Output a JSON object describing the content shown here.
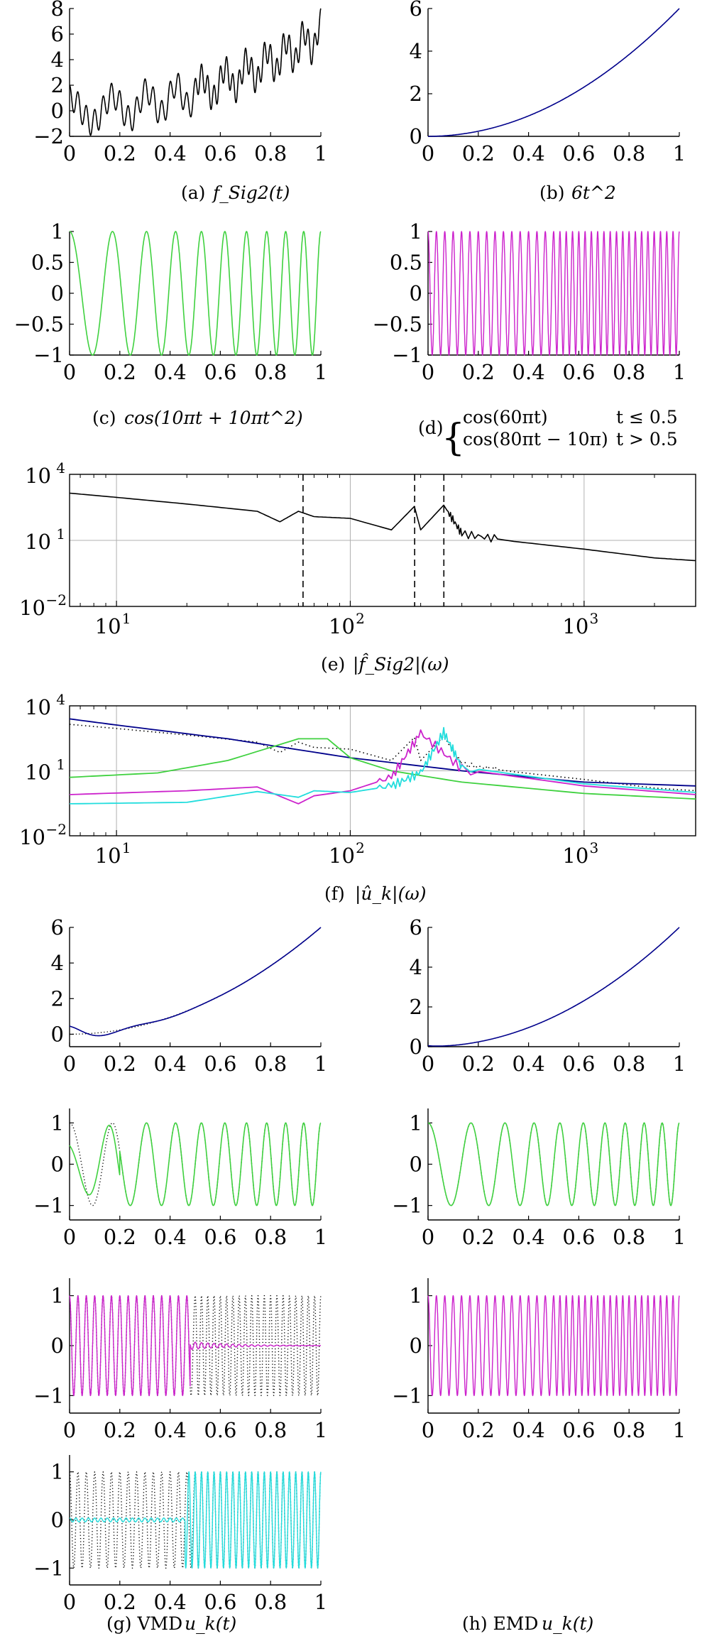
{
  "figure": {
    "captions": {
      "a": {
        "label": "(a)",
        "math": "f_Sig2(t)"
      },
      "b": {
        "label": "(b)",
        "math": "6t^2"
      },
      "c": {
        "label": "(c)",
        "math": "cos(10πt + 10πt^2)"
      },
      "d": {
        "label": "(d)",
        "case1_expr": "cos(60πt)",
        "case1_cond": "t ≤ 0.5",
        "case2_expr": "cos(80πt − 10π)",
        "case2_cond": "t > 0.5"
      },
      "e": {
        "label": "(e)",
        "math": "|f̂_Sig2|(ω)"
      },
      "f": {
        "label": "(f)",
        "math": "|û_k|(ω)"
      },
      "g": {
        "label": "(g) VMD",
        "math": "u_k(t)"
      },
      "h": {
        "label": "(h) EMD",
        "math": "u_k(t)"
      }
    },
    "colors": {
      "black": "#000000",
      "blue": "#00008b",
      "green": "#3fd13f",
      "magenta": "#cc22cc",
      "cyan": "#22dddd",
      "grid": "#b0b0b0"
    }
  },
  "chart_data": [
    {
      "id": "a",
      "type": "line",
      "x_ticks": [
        "0",
        "0.2",
        "0.4",
        "0.6",
        "0.8",
        "1"
      ],
      "y_ticks": [
        "−2",
        "0",
        "2",
        "4",
        "6",
        "8"
      ],
      "xlim": [
        0,
        1
      ],
      "ylim": [
        -2,
        8
      ],
      "series": [
        {
          "color": "#000000",
          "formula": "6t^2 + cos(10πt+10πt^2) + cos(60πt | 80πt−10π)",
          "x": [
            0,
            0.1,
            0.2,
            0.3,
            0.4,
            0.5,
            0.6,
            0.7,
            0.8,
            0.9,
            1.0
          ],
          "y": [
            2.0,
            -1.2,
            0.1,
            1.5,
            0.3,
            2.4,
            3.0,
            2.5,
            4.9,
            4.2,
            8.0
          ]
        }
      ]
    },
    {
      "id": "b",
      "type": "line",
      "x_ticks": [
        "0",
        "0.2",
        "0.4",
        "0.6",
        "0.8",
        "1"
      ],
      "y_ticks": [
        "0",
        "2",
        "4",
        "6"
      ],
      "xlim": [
        0,
        1
      ],
      "ylim": [
        0,
        6
      ],
      "series": [
        {
          "color": "#00008b",
          "formula": "6t^2",
          "x": [
            0,
            0.2,
            0.4,
            0.6,
            0.8,
            1.0
          ],
          "y": [
            0,
            0.24,
            0.96,
            2.16,
            3.84,
            6.0
          ]
        }
      ]
    },
    {
      "id": "c",
      "type": "line",
      "x_ticks": [
        "0",
        "0.2",
        "0.4",
        "0.6",
        "0.8",
        "1"
      ],
      "y_ticks": [
        "−1",
        "−0.5",
        "0",
        "0.5",
        "1"
      ],
      "xlim": [
        0,
        1
      ],
      "ylim": [
        -1,
        1
      ],
      "series": [
        {
          "color": "#3fd13f",
          "formula": "cos(10πt+10πt^2)",
          "x": [
            0,
            0.25,
            0.5,
            0.75,
            1.0
          ],
          "y": [
            1.0,
            -0.38,
            -0.71,
            0.92,
            1.0
          ]
        }
      ]
    },
    {
      "id": "d",
      "type": "line",
      "x_ticks": [
        "0",
        "0.2",
        "0.4",
        "0.6",
        "0.8",
        "1"
      ],
      "y_ticks": [
        "−1",
        "−0.5",
        "0",
        "0.5",
        "1"
      ],
      "xlim": [
        0,
        1
      ],
      "ylim": [
        -1,
        1
      ],
      "series": [
        {
          "color": "#cc22cc",
          "formula": "cos(60πt) for t≤0.5; cos(80πt−10π) for t>0.5",
          "x": [
            0,
            0.5,
            1.0
          ],
          "y": [
            1.0,
            1.0,
            1.0
          ]
        }
      ]
    },
    {
      "id": "e",
      "type": "line",
      "scale": "loglog",
      "x_ticks": [
        "10^1",
        "10^2",
        "10^3"
      ],
      "y_ticks": [
        "10^-2",
        "10^1",
        "10^4"
      ],
      "xlim": [
        6.3,
        3000
      ],
      "ylim": [
        0.01,
        10000
      ],
      "vlines": [
        62.8,
        188.5,
        251.3
      ],
      "series": [
        {
          "color": "#000000",
          "x": [
            6.3,
            10,
            20,
            40,
            50,
            60,
            70,
            100,
            150,
            188,
            200,
            251,
            300,
            500,
            1000,
            2000,
            3000
          ],
          "y": [
            1400,
            900,
            450,
            210,
            70,
            210,
            120,
            100,
            30,
            350,
            30,
            400,
            20,
            9,
            4,
            1.6,
            1.2
          ]
        }
      ]
    },
    {
      "id": "f",
      "type": "line",
      "scale": "loglog",
      "x_ticks": [
        "10^1",
        "10^2",
        "10^3"
      ],
      "y_ticks": [
        "10^-2",
        "10^1",
        "10^4"
      ],
      "xlim": [
        6.3,
        3000
      ],
      "ylim": [
        0.01,
        10000
      ],
      "series": [
        {
          "color": "#00008b",
          "x": [
            6.3,
            10,
            30,
            100,
            300,
            1000,
            3000
          ],
          "y": [
            2500,
            1300,
            300,
            40,
            10,
            3,
            2
          ]
        },
        {
          "color": "#3fd13f",
          "x": [
            6.3,
            15,
            30,
            60,
            80,
            100,
            150,
            300,
            1000,
            3000
          ],
          "y": [
            5,
            8,
            30,
            300,
            300,
            40,
            10,
            3,
            0.9,
            0.5
          ]
        },
        {
          "color": "#cc22cc",
          "x": [
            6.3,
            20,
            40,
            60,
            70,
            100,
            150,
            200,
            300,
            1000,
            3000
          ],
          "y": [
            0.8,
            1.2,
            1.8,
            0.3,
            0.7,
            1.2,
            5,
            550,
            12,
            2,
            0.8
          ]
        },
        {
          "color": "#22dddd",
          "x": [
            6.3,
            20,
            40,
            60,
            70,
            100,
            150,
            200,
            251,
            300,
            1000,
            3000
          ],
          "y": [
            0.3,
            0.35,
            1.1,
            0.6,
            1.2,
            1.0,
            2,
            8,
            600,
            15,
            2.5,
            1.0
          ]
        }
      ]
    },
    {
      "id": "g1",
      "type": "line",
      "x_ticks": [
        "0",
        "0.2",
        "0.4",
        "0.6",
        "0.8",
        "1"
      ],
      "y_ticks": [
        "0",
        "2",
        "4",
        "6"
      ],
      "xlim": [
        0,
        1
      ],
      "ylim": [
        -0.7,
        6
      ],
      "series": [
        {
          "color": "#00008b",
          "x": [
            0,
            0.1,
            0.2,
            0.4,
            0.6,
            0.8,
            1.0
          ],
          "y": [
            0.4,
            -0.4,
            0.2,
            1.0,
            2.2,
            3.8,
            6.0
          ]
        },
        {
          "color": "#000000",
          "style": "dotted",
          "x": [
            0,
            0.2,
            0.4,
            0.6,
            0.8,
            1.0
          ],
          "y": [
            0,
            0.24,
            0.96,
            2.16,
            3.84,
            6.0
          ]
        }
      ]
    },
    {
      "id": "h1",
      "type": "line",
      "x_ticks": [
        "0",
        "0.2",
        "0.4",
        "0.6",
        "0.8",
        "1"
      ],
      "y_ticks": [
        "0",
        "2",
        "4",
        "6"
      ],
      "xlim": [
        0,
        1
      ],
      "ylim": [
        0,
        6
      ],
      "series": [
        {
          "color": "#00008b",
          "x": [
            0,
            0.2,
            0.4,
            0.6,
            0.8,
            1.0
          ],
          "y": [
            0.05,
            0.24,
            0.96,
            2.16,
            3.84,
            6.0
          ]
        }
      ]
    },
    {
      "id": "g2",
      "type": "line",
      "x_ticks": [
        "0",
        "0.2",
        "0.4",
        "0.6",
        "0.8",
        "1"
      ],
      "y_ticks": [
        "−1",
        "0",
        "1"
      ],
      "xlim": [
        0,
        1
      ],
      "ylim": [
        -1.35,
        1.35
      ],
      "series": [
        {
          "color": "#3fd13f",
          "x": [
            0,
            0.1,
            0.25,
            0.5,
            0.75,
            1.0
          ],
          "y": [
            0.7,
            -0.6,
            -0.4,
            -0.71,
            0.92,
            1.0
          ]
        },
        {
          "color": "#000000",
          "style": "dotted",
          "x": [
            0,
            0.25,
            0.5,
            0.75,
            1.0
          ],
          "y": [
            1.0,
            -0.38,
            -0.71,
            0.92,
            1.0
          ]
        }
      ]
    },
    {
      "id": "h2",
      "type": "line",
      "x_ticks": [
        "0",
        "0.2",
        "0.4",
        "0.6",
        "0.8",
        "1"
      ],
      "y_ticks": [
        "−1",
        "0",
        "1"
      ],
      "xlim": [
        0,
        1
      ],
      "ylim": [
        -1.35,
        1.35
      ],
      "series": [
        {
          "color": "#3fd13f",
          "x": [
            0,
            0.25,
            0.5,
            0.75,
            1.0
          ],
          "y": [
            1.0,
            -0.38,
            -0.71,
            0.92,
            1.0
          ]
        }
      ]
    },
    {
      "id": "g3",
      "type": "line",
      "x_ticks": [
        "0",
        "0.2",
        "0.4",
        "0.6",
        "0.8",
        "1"
      ],
      "y_ticks": [
        "−1",
        "0",
        "1"
      ],
      "xlim": [
        0,
        1
      ],
      "ylim": [
        -1.35,
        1.35
      ],
      "series": [
        {
          "color": "#cc22cc",
          "x": [
            0,
            0.45,
            0.5,
            0.6,
            1.0
          ],
          "y": [
            1.0,
            1.0,
            0.1,
            0.05,
            0.05
          ]
        },
        {
          "color": "#000000",
          "style": "dotted",
          "x": [
            0,
            0.5,
            1.0
          ],
          "y": [
            1.0,
            1.0,
            1.0
          ]
        }
      ]
    },
    {
      "id": "h3",
      "type": "line",
      "x_ticks": [
        "0",
        "0.2",
        "0.4",
        "0.6",
        "0.8",
        "1"
      ],
      "y_ticks": [
        "−1",
        "0",
        "1"
      ],
      "xlim": [
        0,
        1
      ],
      "ylim": [
        -1.35,
        1.35
      ],
      "series": [
        {
          "color": "#cc22cc",
          "x": [
            0,
            0.5,
            1.0
          ],
          "y": [
            1.0,
            1.0,
            1.0
          ]
        }
      ]
    },
    {
      "id": "g4",
      "type": "line",
      "x_ticks": [
        "0",
        "0.2",
        "0.4",
        "0.6",
        "0.8",
        "1"
      ],
      "y_ticks": [
        "−1",
        "0",
        "1"
      ],
      "xlim": [
        0,
        1
      ],
      "ylim": [
        -1.35,
        1.35
      ],
      "series": [
        {
          "color": "#22dddd",
          "x": [
            0,
            0.45,
            0.5,
            1.0
          ],
          "y": [
            0.05,
            0.05,
            1.0,
            1.0
          ]
        },
        {
          "color": "#000000",
          "style": "dotted",
          "x": [
            0,
            0.5,
            1.0
          ],
          "y": [
            1.0,
            1.0,
            1.0
          ]
        }
      ]
    }
  ]
}
